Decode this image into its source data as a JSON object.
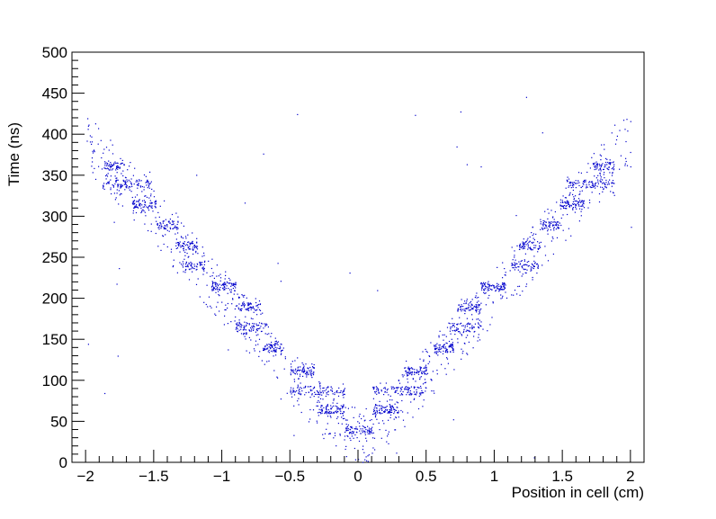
{
  "chart_data": {
    "type": "scatter",
    "title": "",
    "xlabel": "Position in cell (cm)",
    "ylabel": "Time (ns)",
    "xlim": [
      -2.1,
      2.1
    ],
    "ylim": [
      0,
      500
    ],
    "x_ticks": [
      "-2",
      "-1.5",
      "-1",
      "-0.5",
      "0",
      "0.5",
      "1",
      "1.5",
      "2"
    ],
    "x_tick_values": [
      -2,
      -1.5,
      -1,
      -0.5,
      0,
      0.5,
      1,
      1.5,
      2
    ],
    "y_ticks": [
      "0",
      "50",
      "100",
      "150",
      "200",
      "250",
      "300",
      "350",
      "400",
      "450",
      "500"
    ],
    "y_tick_values": [
      0,
      50,
      100,
      150,
      200,
      250,
      300,
      350,
      400,
      450,
      500
    ],
    "grid": false,
    "marker_color": "#0000cc",
    "description_of_clusters": "symmetric staircase bands (x range in cm, time in ns); mirrored for positive x",
    "bands": [
      {
        "y": 362,
        "x": [
          -1.88,
          -1.72
        ],
        "n": 60
      },
      {
        "y": 340,
        "x": [
          -1.88,
          -1.52
        ],
        "n": 110
      },
      {
        "y": 315,
        "x": [
          -1.66,
          -1.48
        ],
        "n": 80
      },
      {
        "y": 290,
        "x": [
          -1.48,
          -1.32
        ],
        "n": 60
      },
      {
        "y": 265,
        "x": [
          -1.34,
          -1.18
        ],
        "n": 70
      },
      {
        "y": 240,
        "x": [
          -1.32,
          -1.12
        ],
        "n": 60
      },
      {
        "y": 215,
        "x": [
          -1.08,
          -0.9
        ],
        "n": 90
      },
      {
        "y": 190,
        "x": [
          -0.9,
          -0.72
        ],
        "n": 70
      },
      {
        "y": 165,
        "x": [
          -0.9,
          -0.66
        ],
        "n": 70
      },
      {
        "y": 140,
        "x": [
          -0.7,
          -0.55
        ],
        "n": 70
      },
      {
        "y": 112,
        "x": [
          -0.5,
          -0.32
        ],
        "n": 70
      },
      {
        "y": 88,
        "x": [
          -0.5,
          -0.1
        ],
        "n": 110
      },
      {
        "y": 65,
        "x": [
          -0.3,
          -0.1
        ],
        "n": 90
      },
      {
        "y": 40,
        "x": [
          -0.1,
          0.0
        ],
        "n": 40
      }
    ],
    "background_points": 700
  }
}
